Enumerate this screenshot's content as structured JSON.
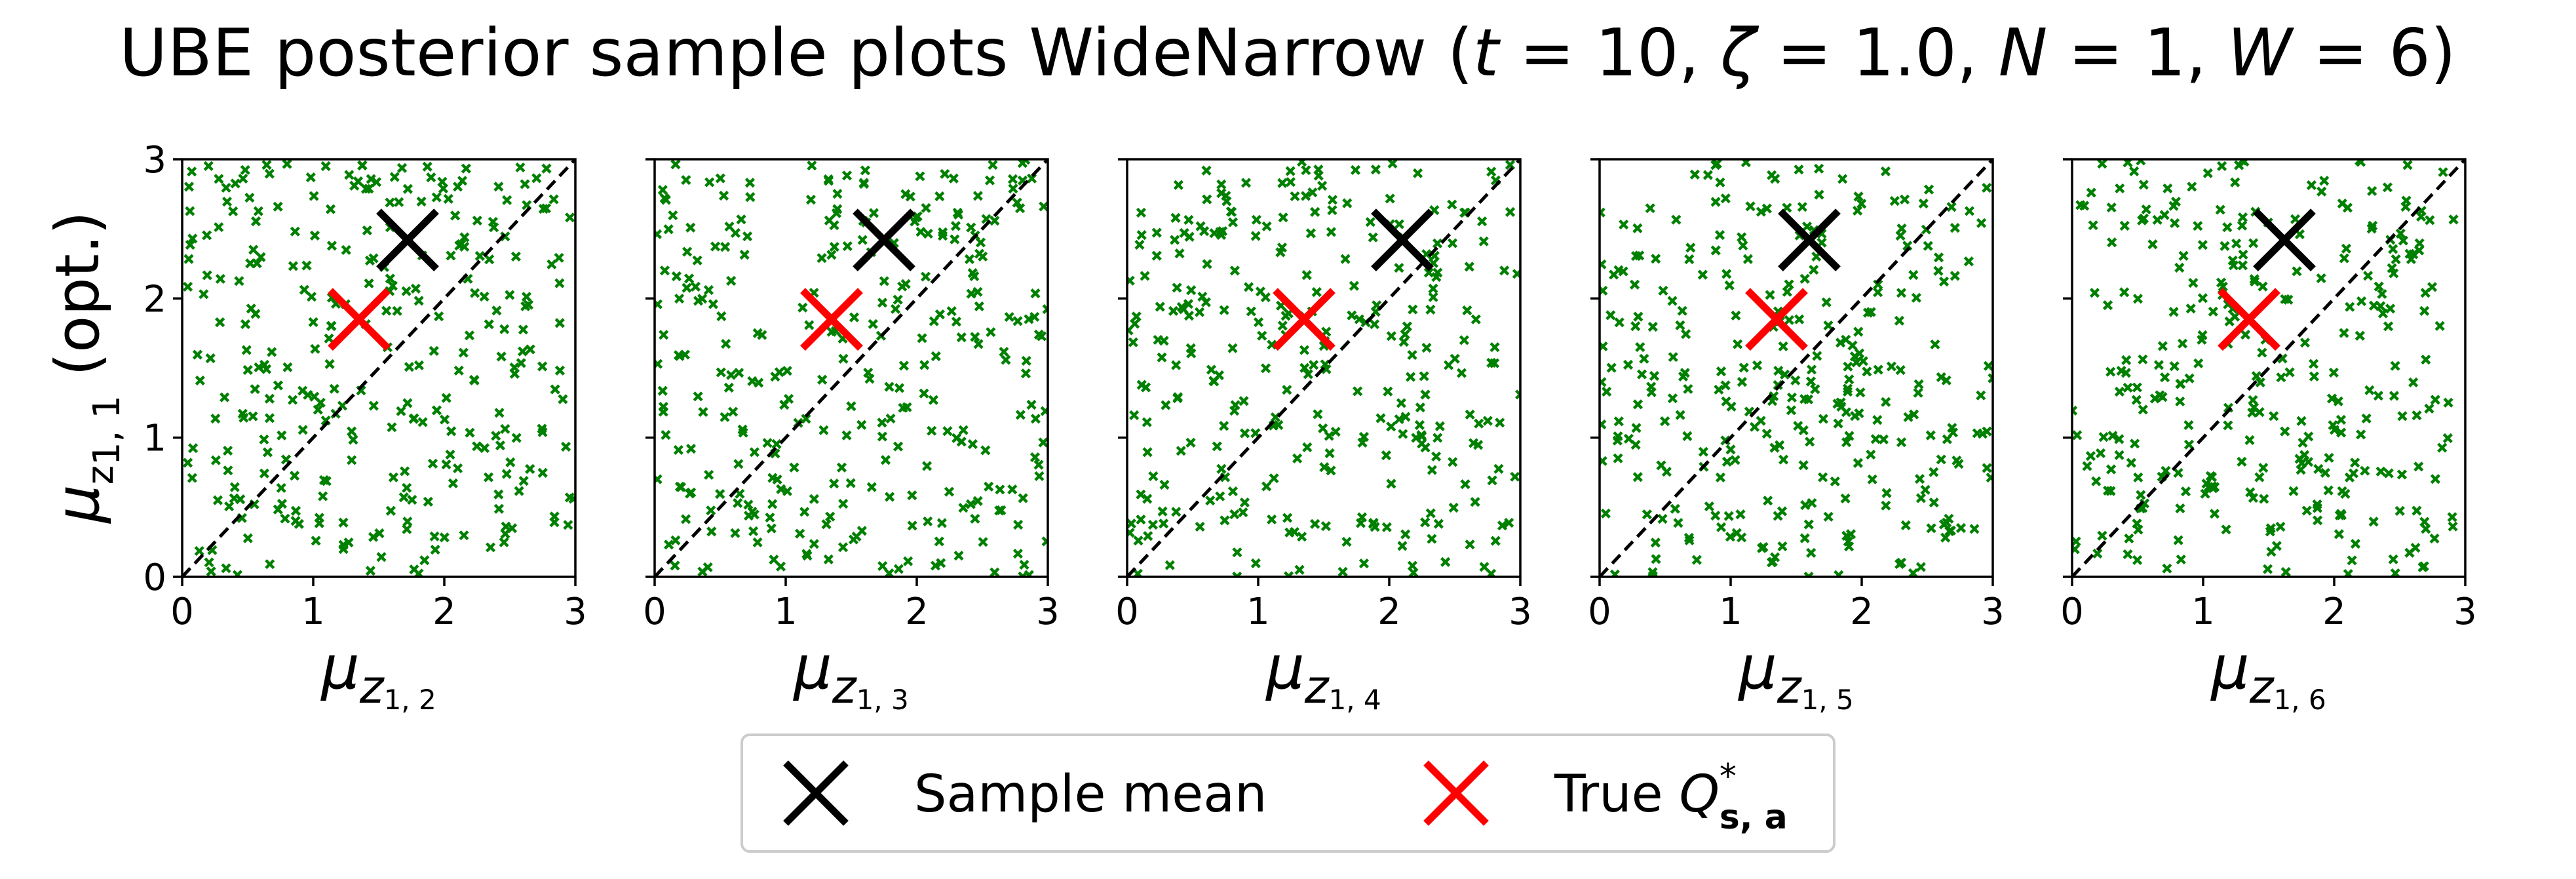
{
  "chart_data": {
    "type": "scatter",
    "title": {
      "prefix": "UBE posterior sample plots WideNarrow (",
      "params": [
        {
          "symbol": "t",
          "value": "10"
        },
        {
          "symbol": "ζ",
          "value": "1.0"
        },
        {
          "symbol": "N",
          "value": "1"
        },
        {
          "symbol": "W",
          "value": "6"
        }
      ],
      "suffix": ")"
    },
    "ylabel": {
      "symbol": "μ",
      "sub": "z",
      "subsub": "1, 1",
      "suffix": "(opt.)"
    },
    "xlim": [
      0,
      3
    ],
    "ylim": [
      0,
      3
    ],
    "ticks": [
      "0",
      "1",
      "2",
      "3"
    ],
    "grid": false,
    "diagonal": "y = x dashed",
    "legend_position": "bottom-center",
    "sample_color": "#008000",
    "subplots": [
      {
        "xlabel": {
          "symbol": "μ",
          "sub": "z",
          "subsub": "1, 2"
        },
        "sample_mean": [
          1.72,
          2.42
        ],
        "true_q": [
          1.35,
          1.85
        ]
      },
      {
        "xlabel": {
          "symbol": "μ",
          "sub": "z",
          "subsub": "1, 3"
        },
        "sample_mean": [
          1.75,
          2.42
        ],
        "true_q": [
          1.35,
          1.85
        ]
      },
      {
        "xlabel": {
          "symbol": "μ",
          "sub": "z",
          "subsub": "1, 4"
        },
        "sample_mean": [
          2.1,
          2.42
        ],
        "true_q": [
          1.35,
          1.85
        ]
      },
      {
        "xlabel": {
          "symbol": "μ",
          "sub": "z",
          "subsub": "1, 5"
        },
        "sample_mean": [
          1.6,
          2.42
        ],
        "true_q": [
          1.35,
          1.85
        ]
      },
      {
        "xlabel": {
          "symbol": "μ",
          "sub": "z",
          "subsub": "1, 6"
        },
        "sample_mean": [
          1.62,
          2.42
        ],
        "true_q": [
          1.35,
          1.85
        ]
      }
    ],
    "series": [
      {
        "name": "Sample mean",
        "color": "#000000",
        "marker": "x"
      },
      {
        "name": "True",
        "label_symbol": "Q",
        "label_sup": "*",
        "label_sub": "s, a",
        "color": "#ff0000",
        "marker": "x"
      }
    ]
  }
}
